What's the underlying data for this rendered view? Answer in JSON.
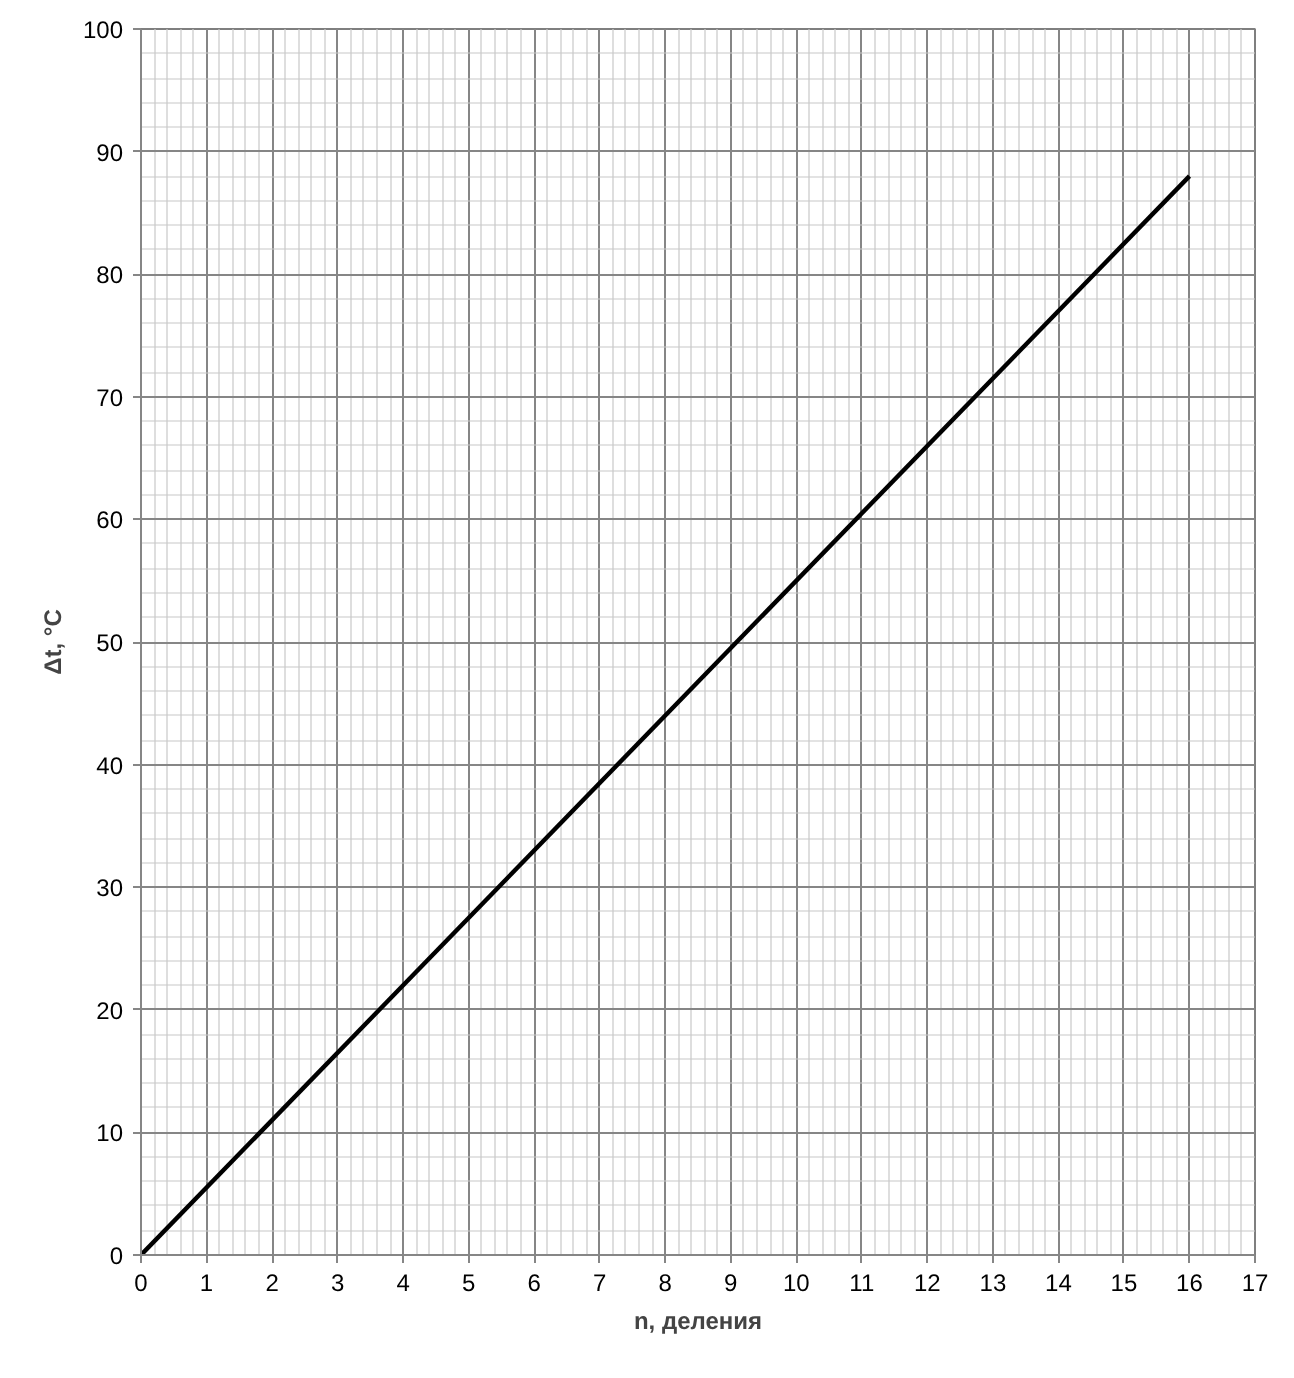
{
  "chart_data": {
    "type": "line",
    "xlabel": "n, деления",
    "ylabel": "Δt, °C",
    "x": [
      0,
      16
    ],
    "series": [
      {
        "color": "#000000",
        "values": [
          0,
          88
        ]
      }
    ],
    "xlim": [
      0,
      17
    ],
    "ylim": [
      0,
      100
    ],
    "xticks": [
      0,
      1,
      2,
      3,
      4,
      5,
      6,
      7,
      8,
      9,
      10,
      11,
      12,
      13,
      14,
      15,
      16,
      17
    ],
    "yticks": [
      0,
      10,
      20,
      30,
      40,
      50,
      60,
      70,
      80,
      90,
      100
    ],
    "grid": true,
    "marker": "none",
    "line_style": "solid"
  }
}
